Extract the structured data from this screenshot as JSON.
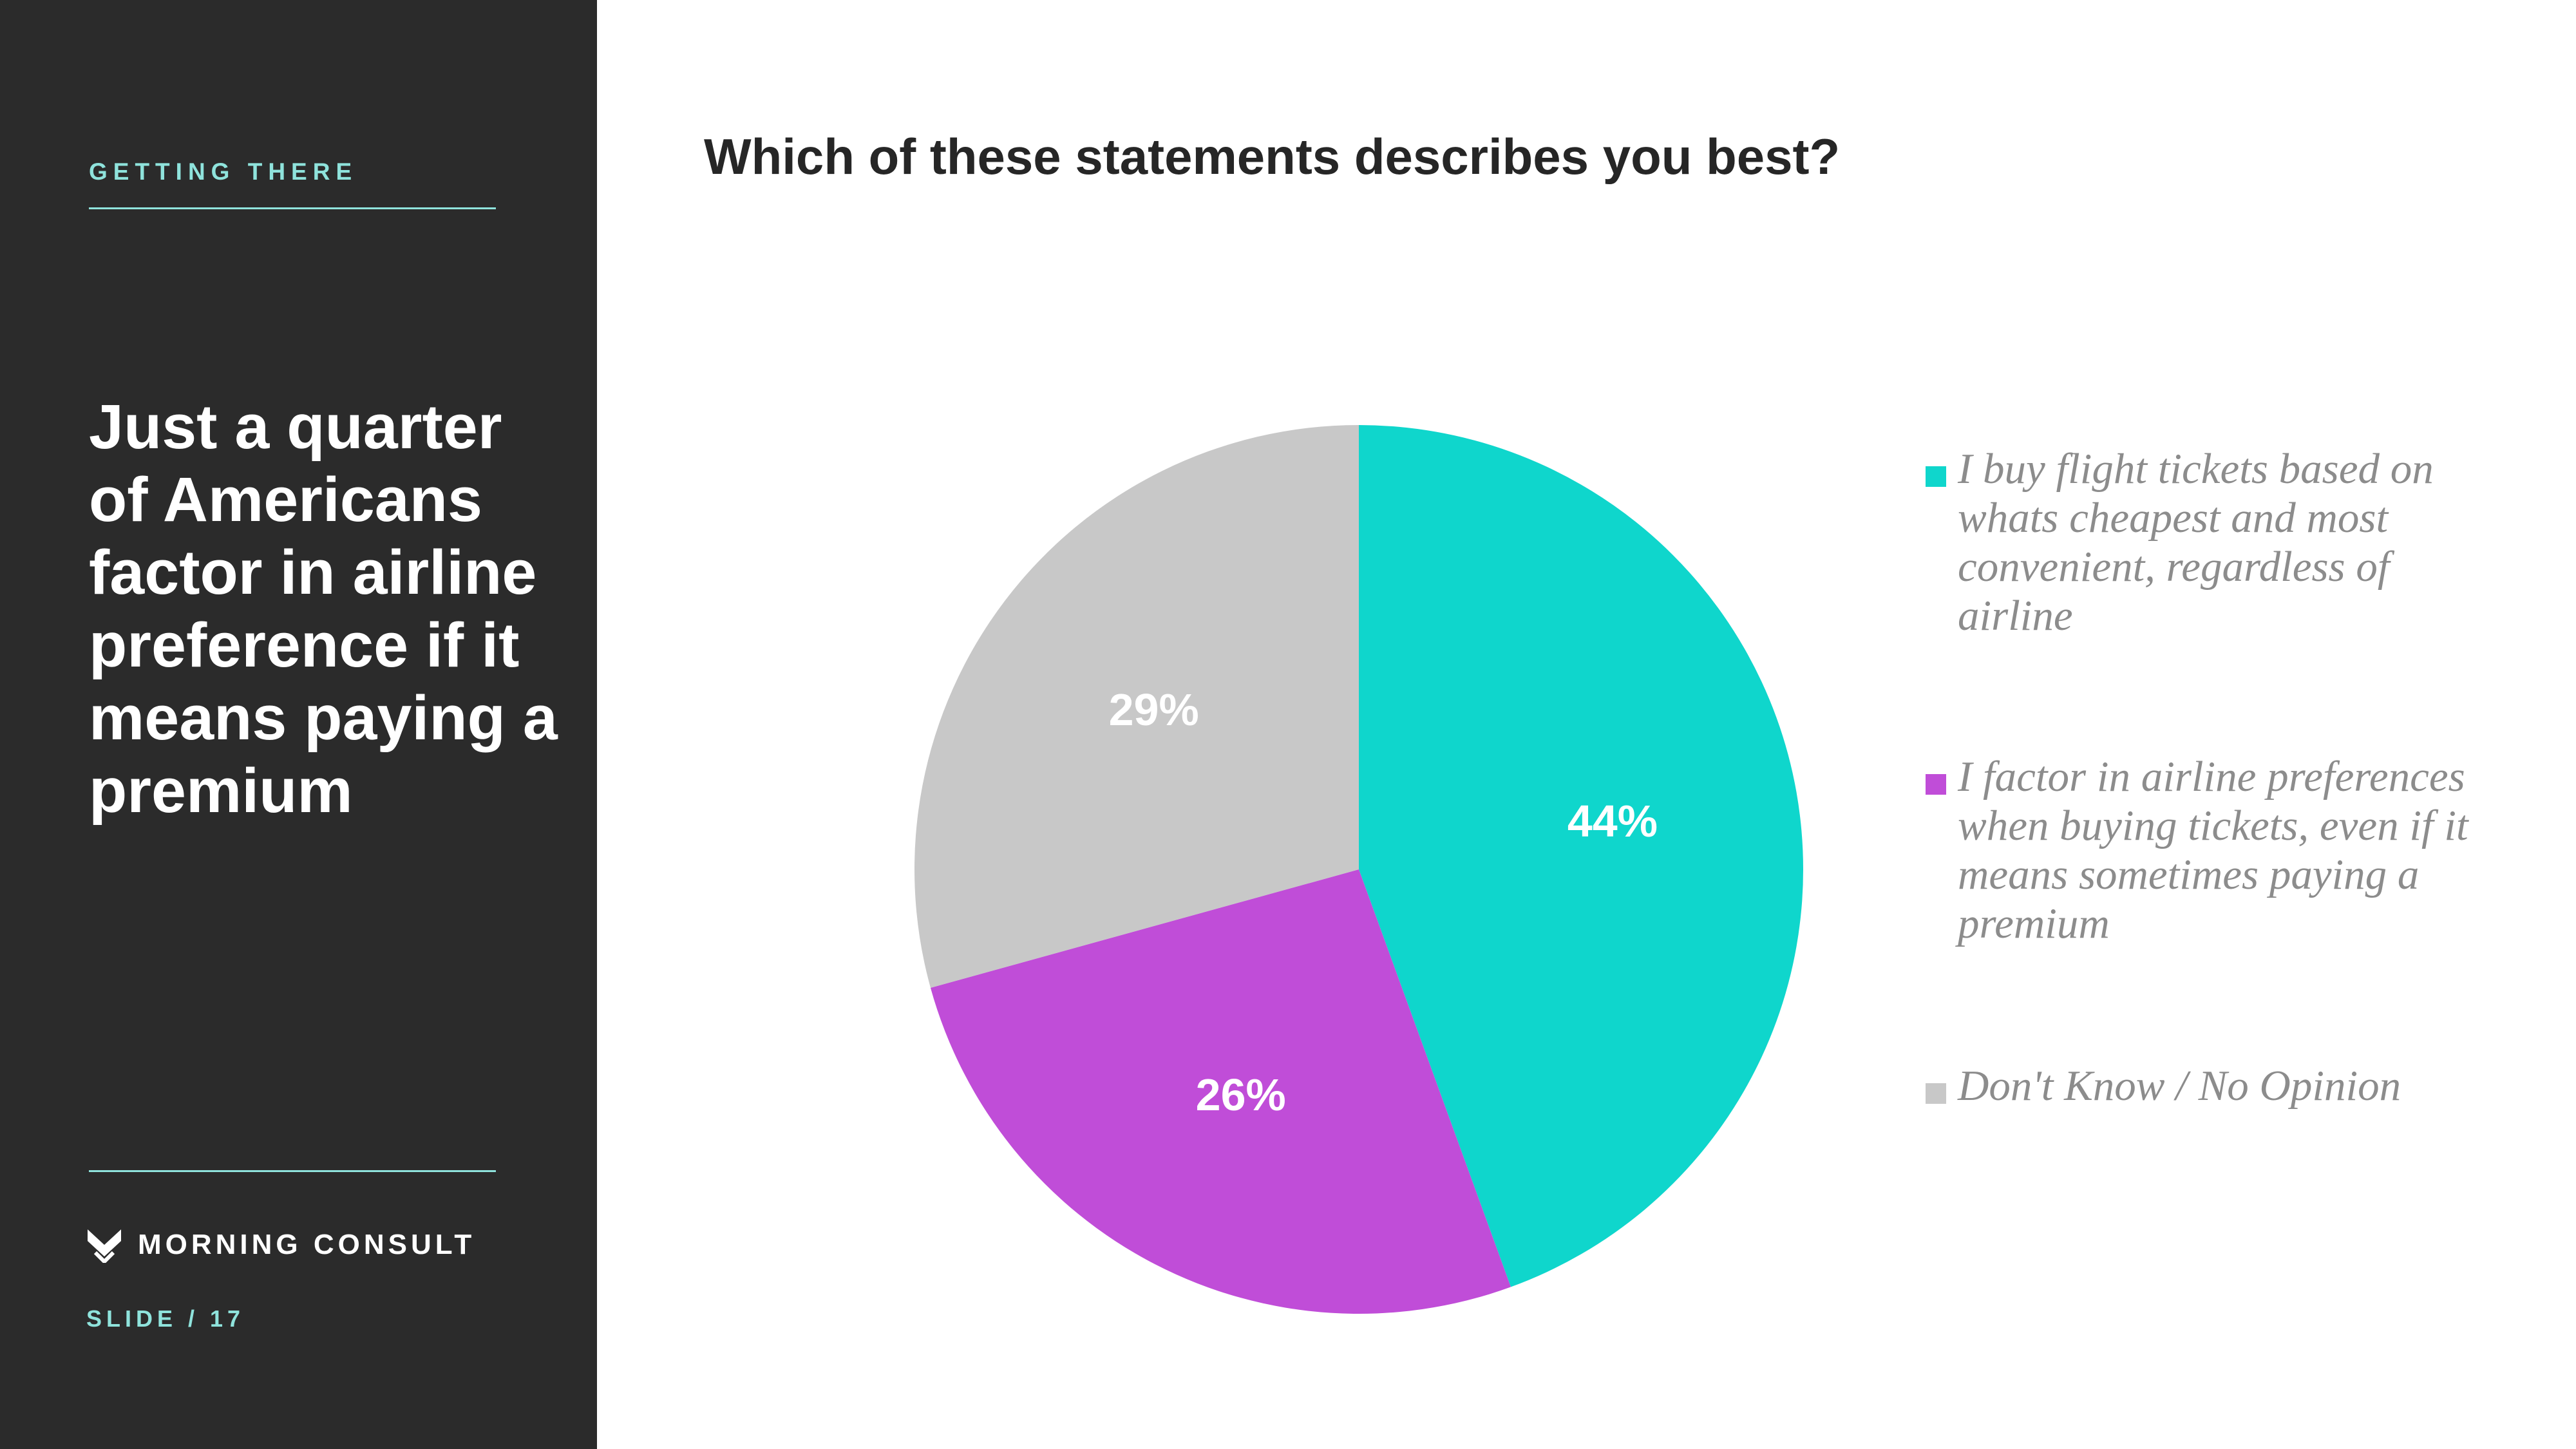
{
  "sidebar": {
    "section_label": "GETTING THERE",
    "headline": "Just a quarter of Americans factor in airline preference if it means paying a premium",
    "brand": "MORNING CONSULT",
    "slide_number": "SLIDE /  17"
  },
  "colors": {
    "sidebar_bg": "#2b2b2b",
    "accent": "#8fe3dc"
  },
  "chart_data": {
    "type": "pie",
    "title": "Which of these statements describes you best?",
    "legend_position": "right",
    "slices": [
      {
        "name": "I buy flight tickets based on whats cheapest and most convenient, regardless of airline",
        "value": 44,
        "label": "44%",
        "color": "#0fd6cc"
      },
      {
        "name": "I factor in airline preferences when buying tickets, even if it means sometimes paying a premium",
        "value": 26,
        "label": "26%",
        "color": "#c04dd8"
      },
      {
        "name": "Don't Know / No Opinion",
        "value": 29,
        "label": "29%",
        "color": "#c8c8c8"
      }
    ]
  }
}
